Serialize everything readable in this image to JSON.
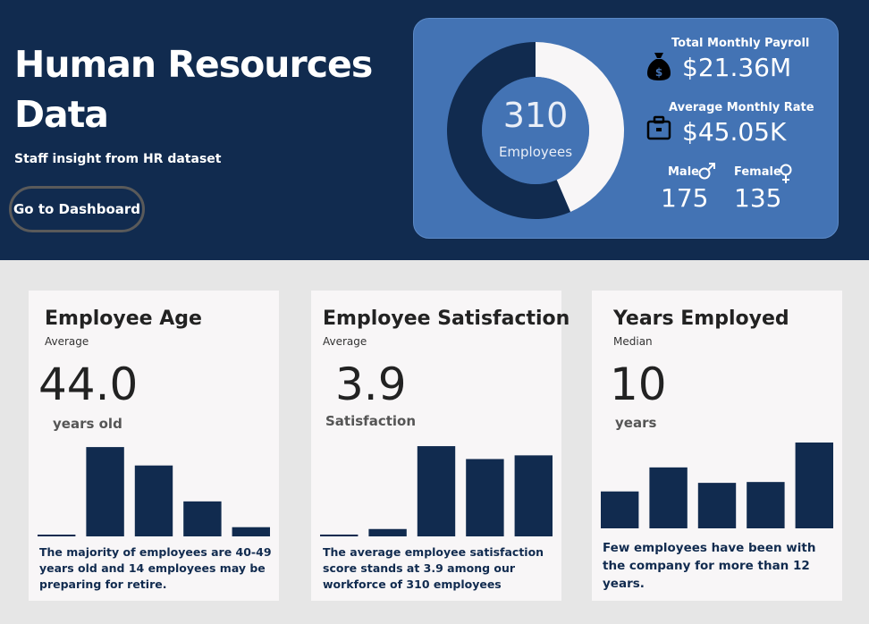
{
  "header": {
    "title": "Human Resources Data",
    "subtitle": "Staff insight from HR dataset",
    "dashboard_button": "Go to Dashboard"
  },
  "kpi": {
    "total_employees": "310",
    "employees_label": "Employees",
    "donut": {
      "male_share": 175,
      "female_share": 135,
      "colors": {
        "male": "#112b4f",
        "female": "#f8f6f7",
        "center": "#4373b4"
      }
    },
    "payroll_label": "Total Monthly Payroll",
    "payroll_value": "$21.36M",
    "rate_label": "Average Monthly Rate",
    "rate_value": "$45.05K",
    "male_label": "Male",
    "male_value": "175",
    "female_label": "Female",
    "female_value": "135",
    "icons": [
      "money-bag-icon",
      "briefcase-icon",
      "male-symbol-icon",
      "female-symbol-icon"
    ]
  },
  "cards": [
    {
      "title": "Employee Age",
      "subtitle": "Average",
      "value": "44.0",
      "unit": "years old",
      "note": "The majority of employees are 40-49 years old and 14 employees may be preparing  for retire.",
      "chart_data": {
        "type": "bar",
        "values": [
          1,
          97,
          77,
          38,
          10
        ],
        "ylim": [
          0,
          100
        ]
      }
    },
    {
      "title": "Employee Satisfaction",
      "subtitle": "Average",
      "value": "3.9",
      "unit": "Satisfaction",
      "note": "The average employee satisfaction score stands at 3.9 among our workforce of 310 employees",
      "chart_data": {
        "type": "bar",
        "values": [
          2,
          8,
          98,
          84,
          88
        ],
        "ylim": [
          0,
          100
        ]
      }
    },
    {
      "title": "Years Employed",
      "subtitle": "Median",
      "value": "10",
      "unit": "years",
      "note": "Few employees have been with the company for more than 12 years.",
      "chart_data": {
        "type": "bar",
        "values": [
          43,
          71,
          53,
          54,
          100
        ],
        "ylim": [
          0,
          100
        ]
      }
    }
  ],
  "colors": {
    "header_bg": "#112b4f",
    "panel_bg": "#4373b4",
    "bar": "#112b4f",
    "card_bg": "#f8f6f7",
    "page_bg": "#e6e6e6"
  }
}
